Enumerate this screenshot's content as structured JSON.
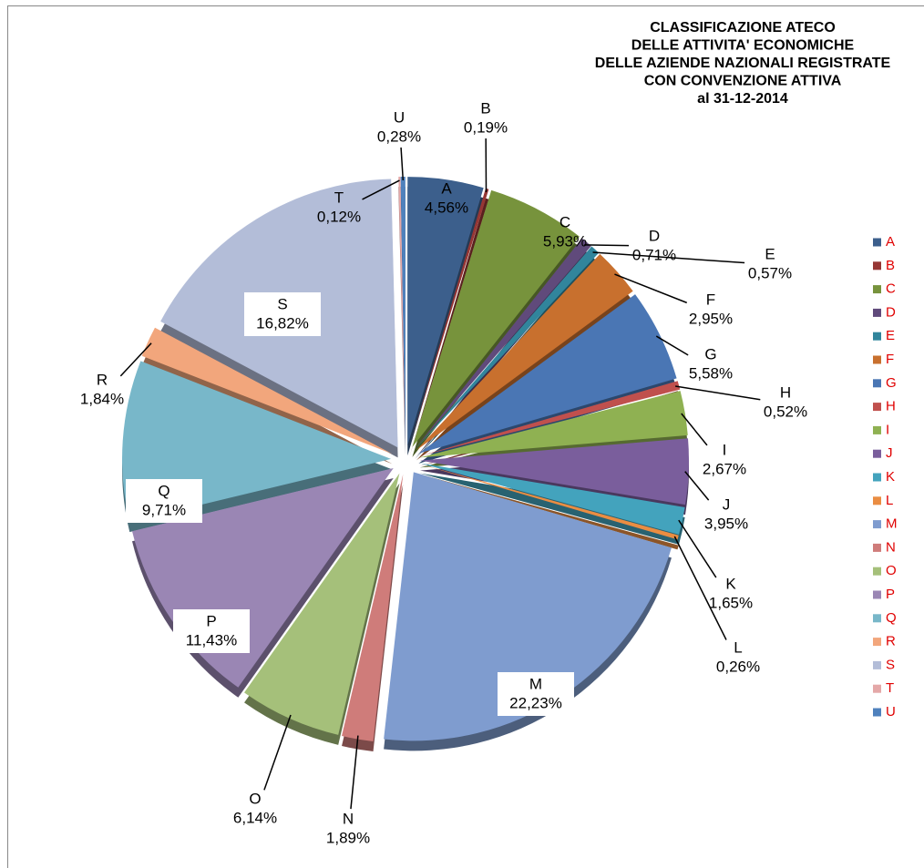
{
  "chart_data": {
    "type": "pie",
    "title": [
      "CLASSIFICAZIONE  ATECO",
      "DELLE ATTIVITA' ECONOMICHE",
      "DELLE AZIENDE NAZIONALI REGISTRATE",
      "CON CONVENZIONE ATTIVA",
      "al 31-12-2014"
    ],
    "categories": [
      "A",
      "B",
      "C",
      "D",
      "E",
      "F",
      "G",
      "H",
      "I",
      "J",
      "K",
      "L",
      "M",
      "N",
      "O",
      "P",
      "Q",
      "R",
      "S",
      "T",
      "U"
    ],
    "values": [
      4.56,
      0.19,
      5.93,
      0.71,
      0.57,
      2.95,
      5.58,
      0.52,
      2.67,
      3.95,
      1.65,
      0.26,
      22.23,
      1.89,
      6.14,
      11.43,
      9.71,
      1.84,
      16.82,
      0.12,
      0.28
    ],
    "value_labels": [
      "4,56%",
      "0,19%",
      "5,93%",
      "0,71%",
      "0,57%",
      "2,95%",
      "5,58%",
      "0,52%",
      "2,67%",
      "3,95%",
      "1,65%",
      "0,26%",
      "22,23%",
      "1,89%",
      "6,14%",
      "11,43%",
      "9,71%",
      "1,84%",
      "16,82%",
      "0,12%",
      "0,28%"
    ],
    "colors": [
      "#3c5f8c",
      "#963634",
      "#77933c",
      "#604a7b",
      "#31859c",
      "#c8702e",
      "#4a76b4",
      "#c0504d",
      "#8fb152",
      "#7a5e9c",
      "#43a3bd",
      "#ea8d42",
      "#7f9ccf",
      "#cf7c7a",
      "#a5c07a",
      "#9a86b4",
      "#78b7c9",
      "#f2a67c",
      "#b3bdd8",
      "#e4a8a8",
      "#4f81bd"
    ],
    "legend": "right"
  }
}
